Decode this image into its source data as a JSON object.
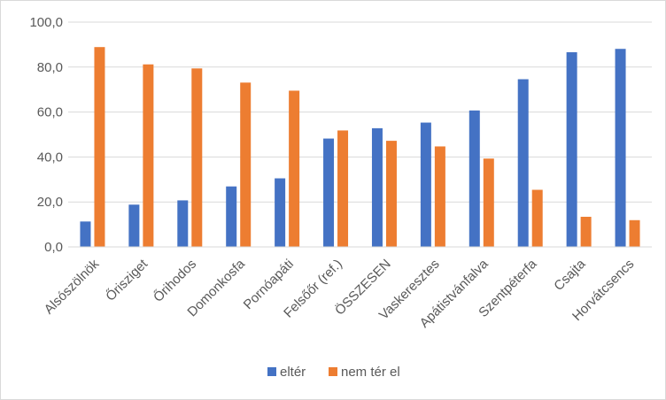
{
  "chart_data": {
    "type": "bar",
    "title": "",
    "xlabel": "",
    "ylabel": "",
    "ylim": [
      0,
      100
    ],
    "yticks": [
      "0,0",
      "20,0",
      "40,0",
      "60,0",
      "80,0",
      "100,0"
    ],
    "grid": true,
    "legend_position": "bottom",
    "categories": [
      "Alsószölnök",
      "Őrisziget",
      "Őrihodos",
      "Domonkosfa",
      "Pornóapáti",
      "Felsőőr (ref.)",
      "ÖSSZESEN",
      "Vaskeresztes",
      "Apátistvánfalva",
      "Szentpéterfa",
      "Csajta",
      "Horvátcsencs"
    ],
    "series": [
      {
        "name": "eltér",
        "color": "#4472c4",
        "values": [
          11.3,
          18.8,
          20.7,
          26.9,
          30.5,
          48.2,
          52.8,
          55.3,
          60.7,
          74.6,
          86.6,
          88.1
        ]
      },
      {
        "name": "nem tér el",
        "color": "#ed7d31",
        "values": [
          88.9,
          81.2,
          79.4,
          73.1,
          69.5,
          51.8,
          47.2,
          44.7,
          39.3,
          25.4,
          13.4,
          11.9
        ]
      }
    ]
  }
}
